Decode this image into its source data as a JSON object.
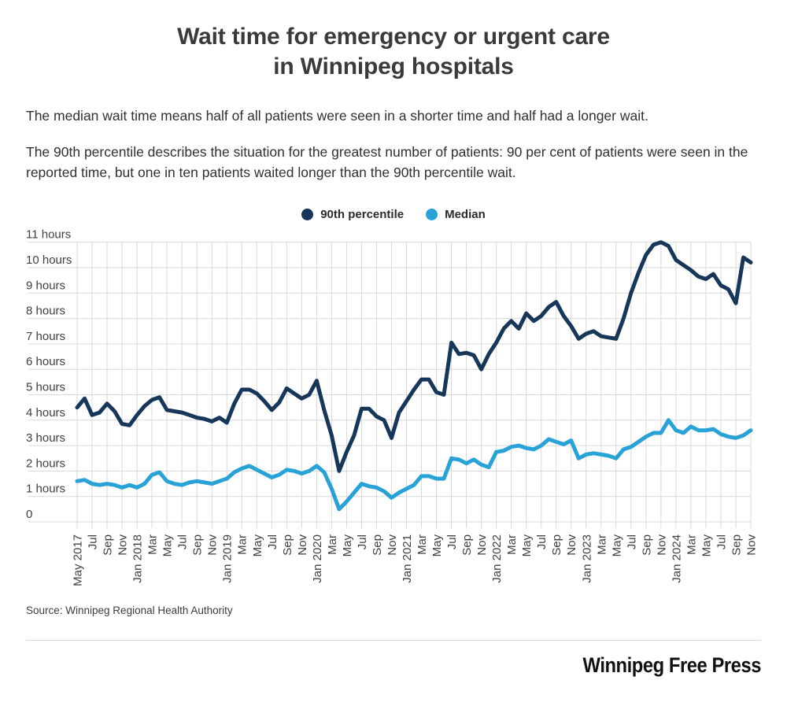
{
  "header": {
    "title_line1": "Wait time for emergency or urgent care",
    "title_line2": "in Winnipeg hospitals"
  },
  "intro": {
    "p1": "The median wait time means half of all patients were seen in a shorter time and half had a longer wait.",
    "p2": "The 90th percentile describes the situation for the greatest number of patients: 90 per cent of patients were seen in the reported time, but one in ten patients waited longer than the 90th percentile wait."
  },
  "legend": [
    {
      "label": "90th percentile",
      "color": "#16365a"
    },
    {
      "label": "Median",
      "color": "#29a2d8"
    }
  ],
  "footer": {
    "source": "Source: Winnipeg Regional Health Authority",
    "logo": "Winnipeg Free Press"
  },
  "colors": {
    "gridline": "#d9d9d9",
    "axis_label": "#404040"
  },
  "chart_data": {
    "type": "line",
    "title": "Wait time for emergency or urgent care in Winnipeg hospitals",
    "xlabel": "",
    "ylabel": "hours",
    "ylim": [
      0,
      11
    ],
    "grid": true,
    "legend_position": "top-center",
    "months_start": "May 2017",
    "months_end": "Nov 2024",
    "points_per_series": 91,
    "tick_every_months": 2,
    "y_tick_labels": [
      "11 hours",
      "10 hours",
      "9 hours",
      "8 hours",
      "7 hours",
      "6 hours",
      "5 hours",
      "4 hours",
      "3 hours",
      "2 hours",
      "1 hours",
      "0"
    ],
    "x_tick_labels": [
      "May 2017",
      "Jul",
      "Sep",
      "Nov",
      "Jan 2018",
      "Mar",
      "May",
      "Jul",
      "Sep",
      "Nov",
      "Jan 2019",
      "Mar",
      "May",
      "Jul",
      "Sep",
      "Nov",
      "Jan 2020",
      "Mar",
      "May",
      "Jul",
      "Sep",
      "Nov",
      "Jan 2021",
      "Mar",
      "May",
      "Jul",
      "Sep",
      "Nov",
      "Jan 2022",
      "Mar",
      "May",
      "Jul",
      "Sep",
      "Nov",
      "Jan 2023",
      "Mar",
      "May",
      "Jul",
      "Sep",
      "Nov",
      "Jan 2024",
      "Mar",
      "May",
      "Jul",
      "Sep",
      "Nov"
    ],
    "series": [
      {
        "name": "90th percentile",
        "color": "#16365a",
        "values": [
          4.5,
          4.85,
          4.2,
          4.3,
          4.65,
          4.35,
          3.85,
          3.8,
          4.2,
          4.55,
          4.8,
          4.9,
          4.4,
          4.35,
          4.3,
          4.2,
          4.1,
          4.05,
          3.95,
          4.1,
          3.9,
          4.65,
          5.2,
          5.2,
          5.05,
          4.75,
          4.4,
          4.7,
          5.25,
          5.05,
          4.85,
          5.0,
          5.55,
          4.4,
          3.4,
          2.0,
          2.75,
          3.4,
          4.45,
          4.45,
          4.15,
          4.0,
          3.3,
          4.3,
          4.75,
          5.2,
          5.6,
          5.6,
          5.1,
          5.0,
          7.05,
          6.6,
          6.65,
          6.55,
          6.0,
          6.6,
          7.05,
          7.6,
          7.9,
          7.6,
          8.2,
          7.9,
          8.1,
          8.45,
          8.65,
          8.1,
          7.7,
          7.2,
          7.4,
          7.5,
          7.3,
          7.25,
          7.2,
          8.0,
          9.0,
          9.8,
          10.5,
          10.9,
          11.0,
          10.85,
          10.3,
          10.1,
          9.9,
          9.65,
          9.55,
          9.75,
          9.3,
          9.15,
          8.6,
          10.4,
          10.2
        ]
      },
      {
        "name": "Median",
        "color": "#29a2d8",
        "values": [
          1.6,
          1.65,
          1.5,
          1.45,
          1.5,
          1.45,
          1.35,
          1.45,
          1.35,
          1.5,
          1.85,
          1.95,
          1.6,
          1.5,
          1.45,
          1.55,
          1.6,
          1.55,
          1.5,
          1.6,
          1.7,
          1.95,
          2.1,
          2.2,
          2.05,
          1.9,
          1.75,
          1.85,
          2.05,
          2.0,
          1.9,
          2.0,
          2.2,
          1.95,
          1.3,
          0.5,
          0.8,
          1.15,
          1.5,
          1.4,
          1.35,
          1.2,
          0.95,
          1.15,
          1.3,
          1.45,
          1.8,
          1.8,
          1.7,
          1.7,
          2.5,
          2.45,
          2.3,
          2.45,
          2.25,
          2.15,
          2.75,
          2.8,
          2.95,
          3.0,
          2.9,
          2.85,
          3.0,
          3.25,
          3.15,
          3.05,
          3.2,
          2.5,
          2.65,
          2.7,
          2.65,
          2.6,
          2.5,
          2.85,
          2.95,
          3.15,
          3.35,
          3.5,
          3.5,
          4.0,
          3.6,
          3.5,
          3.75,
          3.6,
          3.6,
          3.65,
          3.45,
          3.35,
          3.3,
          3.4,
          3.6
        ]
      }
    ]
  }
}
